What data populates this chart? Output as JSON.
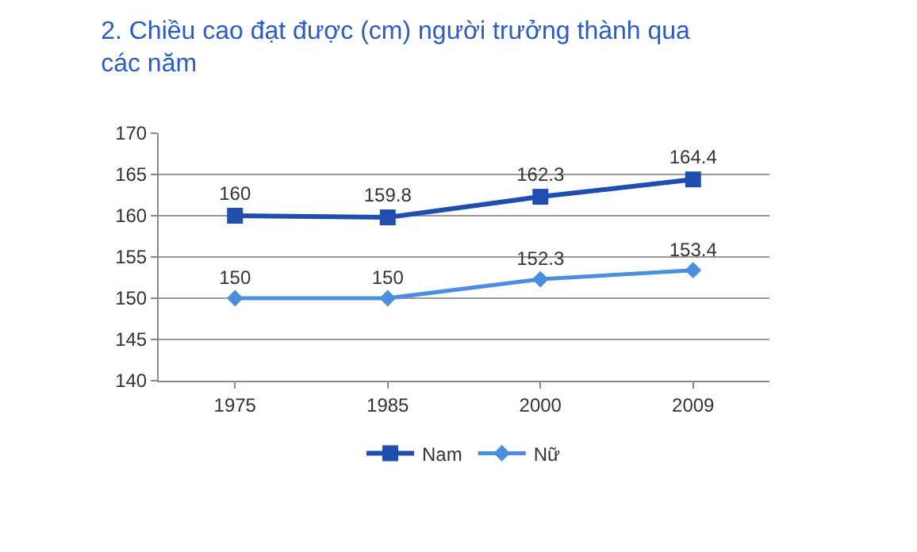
{
  "chart_data": {
    "type": "line",
    "title": "2. Chiều cao đạt được (cm) người trưởng thành qua các năm",
    "categories": [
      "1975",
      "1985",
      "2000",
      "2009"
    ],
    "series": [
      {
        "name": "Nam",
        "color": "#1f4db0",
        "values": [
          160,
          159.8,
          162.3,
          164.4
        ],
        "marker": "square"
      },
      {
        "name": "Nữ",
        "color": "#4a8ee0",
        "values": [
          150,
          150,
          152.3,
          153.4
        ],
        "marker": "diamond"
      }
    ],
    "ylim": [
      140,
      170
    ],
    "yticks": [
      140,
      145,
      150,
      155,
      160,
      165,
      170
    ],
    "grid": "y",
    "legend": "bottom",
    "data_labels": true,
    "line_style": "solid"
  }
}
